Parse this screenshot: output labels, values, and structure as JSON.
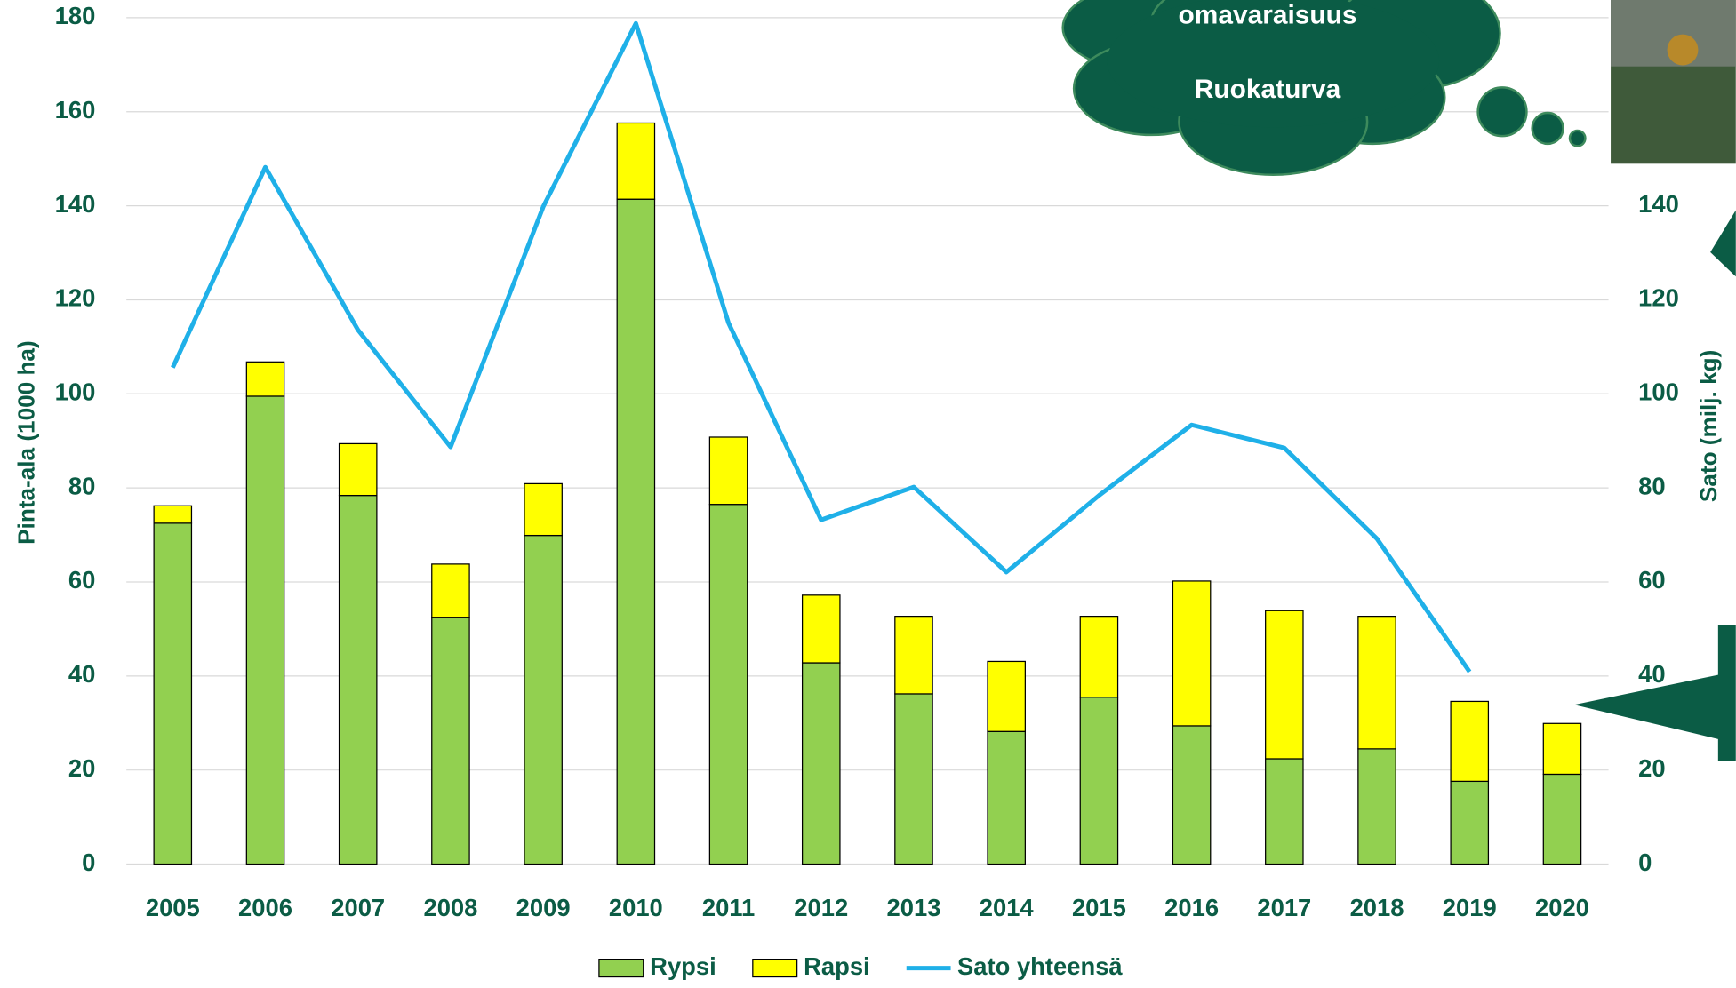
{
  "chart_data": {
    "type": "bar",
    "stacked": true,
    "categories": [
      "2005",
      "2006",
      "2007",
      "2008",
      "2009",
      "2010",
      "2011",
      "2012",
      "2013",
      "2014",
      "2015",
      "2016",
      "2017",
      "2018",
      "2019",
      "2020"
    ],
    "series": [
      {
        "name": "Rypsi",
        "color": "#92d050",
        "values": [
          72.5,
          99.5,
          78.4,
          52.5,
          69.9,
          141.4,
          76.5,
          42.8,
          36.2,
          28.2,
          35.5,
          29.4,
          22.4,
          24.5,
          17.6,
          19.1
        ]
      },
      {
        "name": "Rapsi",
        "color": "#ffff00",
        "values": [
          3.7,
          7.3,
          11.0,
          11.3,
          11.0,
          16.2,
          14.3,
          14.4,
          16.5,
          14.9,
          17.2,
          30.8,
          31.5,
          28.2,
          17.0,
          10.8
        ]
      },
      {
        "name": "Sato yhteensä",
        "color": "#1fb0e8",
        "type": "line",
        "axis": "y2",
        "values": [
          105.6,
          148.2,
          113.6,
          88.7,
          139.8,
          178.8,
          115.1,
          73.2,
          80.2,
          62.1,
          78.4,
          93.4,
          88.5,
          69.2,
          40.9,
          null
        ]
      }
    ],
    "ylabel": "Pinta-ala (1000 ha)",
    "y2label": "Sato (milj. kg)",
    "ylim": [
      0,
      180
    ],
    "yticks": [
      0,
      20,
      40,
      60,
      80,
      100,
      120,
      140,
      160,
      180
    ],
    "y2lim": [
      0,
      180
    ],
    "y2ticks": [
      0,
      20,
      40,
      60,
      80,
      100,
      120,
      140
    ],
    "grid": true,
    "legend": "bottom",
    "annotations": [
      "omavaraisuus",
      "Ruokaturva"
    ]
  }
}
